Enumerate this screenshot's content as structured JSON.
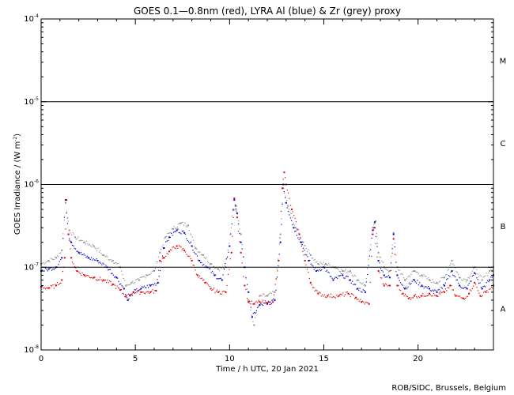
{
  "chart_data": {
    "type": "scatter",
    "title": "GOES 0.1—0.8nm (red), LYRA Al (blue) & Zr (grey) proxy",
    "xlabel": "Time / h UTC, 20 Jan 2021",
    "ylabel": "GOES Irradiance / (W m",
    "ylabel_exp": "-2",
    "ylabel_close": ")",
    "credit": "ROB/SIDC, Brussels, Belgium",
    "xlim": [
      0,
      24
    ],
    "ylim": [
      1e-08,
      0.0001
    ],
    "yscale": "log",
    "grid": false,
    "x_ticks": [
      {
        "value": 0,
        "label": "0"
      },
      {
        "value": 5,
        "label": "5"
      },
      {
        "value": 10,
        "label": "10"
      },
      {
        "value": 15,
        "label": "15"
      },
      {
        "value": 20,
        "label": "20"
      }
    ],
    "y_ticks": [
      {
        "value": 1e-08,
        "base": "10",
        "exp": "-8"
      },
      {
        "value": 1e-07,
        "base": "10",
        "exp": "-7"
      },
      {
        "value": 1e-06,
        "base": "10",
        "exp": "-6"
      },
      {
        "value": 1e-05,
        "base": "10",
        "exp": "-5"
      },
      {
        "value": 0.0001,
        "base": "10",
        "exp": "-4"
      }
    ],
    "flare_classes": [
      {
        "label": "A",
        "value": 3.16e-08
      },
      {
        "label": "B",
        "value": 3.16e-07
      },
      {
        "label": "C",
        "value": 3.16e-06
      },
      {
        "label": "M",
        "value": 3.16e-05
      }
    ],
    "threshold_lines": [
      1e-07,
      1e-06,
      1e-05
    ],
    "series": [
      {
        "key": "goes",
        "color": "#e00000",
        "points": [
          [
            0.0,
            5.8e-08
          ],
          [
            0.4,
            5.6e-08
          ],
          [
            0.8,
            6e-08
          ],
          [
            1.1,
            7e-08
          ],
          [
            1.25,
            1.3e-07
          ],
          [
            1.35,
            6.5e-07
          ],
          [
            1.45,
            2.5e-07
          ],
          [
            1.6,
            1.3e-07
          ],
          [
            1.9,
            9e-08
          ],
          [
            2.3,
            8e-08
          ],
          [
            2.8,
            7.5e-08
          ],
          [
            3.3,
            7e-08
          ],
          [
            3.8,
            6.2e-08
          ],
          [
            4.2,
            5.3e-08
          ],
          [
            4.5,
            4.4e-08
          ],
          [
            4.7,
            4.6e-08
          ],
          [
            4.9,
            5e-08
          ],
          [
            5.3,
            5e-08
          ],
          [
            5.8,
            5e-08
          ],
          [
            6.1,
            5.2e-08
          ],
          [
            6.3,
            1.2e-07
          ],
          [
            6.5,
            1.3e-07
          ],
          [
            6.8,
            1.55e-07
          ],
          [
            7.2,
            1.8e-07
          ],
          [
            7.6,
            1.6e-07
          ],
          [
            8.0,
            1.2e-07
          ],
          [
            8.3,
            8e-08
          ],
          [
            8.7,
            6.5e-08
          ],
          [
            9.0,
            5.5e-08
          ],
          [
            9.4,
            5e-08
          ],
          [
            9.8,
            5e-08
          ],
          [
            10.1,
            1.5e-07
          ],
          [
            10.25,
            6.8e-07
          ],
          [
            10.4,
            4e-07
          ],
          [
            10.6,
            1.5e-07
          ],
          [
            10.8,
            6e-08
          ],
          [
            11.0,
            3.8e-08
          ],
          [
            11.3,
            3.6e-08
          ],
          [
            11.6,
            3.8e-08
          ],
          [
            12.0,
            3.7e-08
          ],
          [
            12.3,
            3.8e-08
          ],
          [
            12.6,
            1.2e-07
          ],
          [
            12.8,
            9e-07
          ],
          [
            12.9,
            1.4e-06
          ],
          [
            13.0,
            1e-06
          ],
          [
            13.3,
            5e-07
          ],
          [
            13.7,
            2.5e-07
          ],
          [
            14.0,
            1.2e-07
          ],
          [
            14.3,
            6.5e-08
          ],
          [
            14.7,
            4.8e-08
          ],
          [
            15.2,
            4.5e-08
          ],
          [
            15.8,
            4.5e-08
          ],
          [
            16.3,
            4.8e-08
          ],
          [
            16.7,
            4.3e-08
          ],
          [
            17.0,
            3.8e-08
          ],
          [
            17.4,
            3.6e-08
          ],
          [
            17.6,
            2.5e-07
          ],
          [
            17.7,
            3e-07
          ],
          [
            17.9,
            9e-08
          ],
          [
            18.2,
            6e-08
          ],
          [
            18.5,
            6e-08
          ],
          [
            18.7,
            2.2e-07
          ],
          [
            18.9,
            6e-08
          ],
          [
            19.2,
            4.8e-08
          ],
          [
            19.5,
            4.2e-08
          ],
          [
            19.8,
            4.5e-08
          ],
          [
            20.2,
            4.5e-08
          ],
          [
            20.6,
            4.8e-08
          ],
          [
            21.0,
            4.5e-08
          ],
          [
            21.4,
            5e-08
          ],
          [
            21.7,
            6e-08
          ],
          [
            22.0,
            4.5e-08
          ],
          [
            22.4,
            4.2e-08
          ],
          [
            22.7,
            4.8e-08
          ],
          [
            23.0,
            6.5e-08
          ],
          [
            23.3,
            4.5e-08
          ],
          [
            23.6,
            5e-08
          ],
          [
            24.0,
            6e-08
          ]
        ]
      },
      {
        "key": "lyra_al",
        "color": "#0000cc",
        "points": [
          [
            0.0,
            9e-08
          ],
          [
            0.4,
            9.5e-08
          ],
          [
            0.8,
            1e-07
          ],
          [
            1.1,
            1.3e-07
          ],
          [
            1.3,
            6.5e-07
          ],
          [
            1.45,
            2.5e-07
          ],
          [
            1.6,
            2e-07
          ],
          [
            2.0,
            1.5e-07
          ],
          [
            2.5,
            1.3e-07
          ],
          [
            3.0,
            1.2e-07
          ],
          [
            3.5,
            1e-07
          ],
          [
            4.0,
            7.5e-08
          ],
          [
            4.4,
            5.5e-08
          ],
          [
            4.6,
            4e-08
          ],
          [
            4.9,
            5e-08
          ],
          [
            5.3,
            5.5e-08
          ],
          [
            5.8,
            6e-08
          ],
          [
            6.2,
            6.5e-08
          ],
          [
            6.5,
            1.7e-07
          ],
          [
            6.8,
            2.3e-07
          ],
          [
            7.2,
            2.8e-07
          ],
          [
            7.6,
            2.6e-07
          ],
          [
            8.0,
            1.8e-07
          ],
          [
            8.4,
            1.2e-07
          ],
          [
            8.8,
            1e-07
          ],
          [
            9.2,
            8e-08
          ],
          [
            9.6,
            7e-08
          ],
          [
            10.0,
            1.8e-07
          ],
          [
            10.25,
            6.5e-07
          ],
          [
            10.4,
            4.5e-07
          ],
          [
            10.6,
            2e-07
          ],
          [
            10.8,
            1e-07
          ],
          [
            11.0,
            5e-08
          ],
          [
            11.2,
            2.5e-08
          ],
          [
            11.6,
            3.5e-08
          ],
          [
            12.0,
            3.6e-08
          ],
          [
            12.4,
            4e-08
          ],
          [
            12.7,
            2e-07
          ],
          [
            12.85,
            1e-06
          ],
          [
            13.0,
            6e-07
          ],
          [
            13.4,
            3e-07
          ],
          [
            13.8,
            2e-07
          ],
          [
            14.2,
            1.2e-07
          ],
          [
            14.6,
            9e-08
          ],
          [
            15.0,
            1e-07
          ],
          [
            15.5,
            7e-08
          ],
          [
            16.0,
            8e-08
          ],
          [
            16.4,
            7e-08
          ],
          [
            16.8,
            5.5e-08
          ],
          [
            17.2,
            5e-08
          ],
          [
            17.6,
            2.8e-07
          ],
          [
            17.7,
            3.5e-07
          ],
          [
            17.9,
            1.2e-07
          ],
          [
            18.2,
            8e-08
          ],
          [
            18.5,
            7.5e-08
          ],
          [
            18.7,
            2.5e-07
          ],
          [
            18.9,
            8e-08
          ],
          [
            19.3,
            5.5e-08
          ],
          [
            19.8,
            7e-08
          ],
          [
            20.2,
            6e-08
          ],
          [
            20.6,
            5.5e-08
          ],
          [
            21.0,
            5e-08
          ],
          [
            21.4,
            6e-08
          ],
          [
            21.8,
            9e-08
          ],
          [
            22.2,
            6e-08
          ],
          [
            22.6,
            5.5e-08
          ],
          [
            23.0,
            8.5e-08
          ],
          [
            23.4,
            5.5e-08
          ],
          [
            23.8,
            7e-08
          ],
          [
            24.0,
            8e-08
          ]
        ]
      },
      {
        "key": "lyra_zr",
        "color": "#909090",
        "points": [
          [
            0.0,
            1.1e-07
          ],
          [
            0.4,
            1.2e-07
          ],
          [
            0.8,
            1.3e-07
          ],
          [
            1.1,
            1.6e-07
          ],
          [
            1.3,
            6e-07
          ],
          [
            1.5,
            2.8e-07
          ],
          [
            1.8,
            2.3e-07
          ],
          [
            2.3,
            2e-07
          ],
          [
            2.8,
            1.8e-07
          ],
          [
            3.3,
            1.4e-07
          ],
          [
            3.8,
            1.2e-07
          ],
          [
            4.2,
            1e-07
          ],
          [
            4.5,
            6e-08
          ],
          [
            4.8,
            6.5e-08
          ],
          [
            5.2,
            7e-08
          ],
          [
            5.6,
            8e-08
          ],
          [
            6.0,
            9e-08
          ],
          [
            6.3,
            1.5e-07
          ],
          [
            6.6,
            2.3e-07
          ],
          [
            7.0,
            2.9e-07
          ],
          [
            7.4,
            3.4e-07
          ],
          [
            7.8,
            3.2e-07
          ],
          [
            8.2,
            1.7e-07
          ],
          [
            8.6,
            1.4e-07
          ],
          [
            9.0,
            1.1e-07
          ],
          [
            9.4,
            9.5e-08
          ],
          [
            9.8,
            1e-07
          ],
          [
            10.2,
            5e-07
          ],
          [
            10.35,
            5.5e-07
          ],
          [
            10.6,
            2.5e-07
          ],
          [
            10.8,
            1e-07
          ],
          [
            11.0,
            4e-08
          ],
          [
            11.3,
            2e-08
          ],
          [
            11.6,
            4.5e-08
          ],
          [
            12.0,
            4.5e-08
          ],
          [
            12.4,
            5e-08
          ],
          [
            12.7,
            2.5e-07
          ],
          [
            12.85,
            9e-07
          ],
          [
            13.1,
            5.5e-07
          ],
          [
            13.5,
            3e-07
          ],
          [
            13.9,
            2e-07
          ],
          [
            14.3,
            1.4e-07
          ],
          [
            14.7,
            1.1e-07
          ],
          [
            15.1,
            1.1e-07
          ],
          [
            15.6,
            1e-07
          ],
          [
            16.0,
            9e-08
          ],
          [
            16.4,
            9e-08
          ],
          [
            16.8,
            7e-08
          ],
          [
            17.2,
            6e-08
          ],
          [
            17.6,
            3e-07
          ],
          [
            17.75,
            3.6e-07
          ],
          [
            17.9,
            1.5e-07
          ],
          [
            18.2,
            1e-07
          ],
          [
            18.5,
            9e-08
          ],
          [
            18.7,
            2.6e-07
          ],
          [
            18.9,
            1e-07
          ],
          [
            19.3,
            7e-08
          ],
          [
            19.8,
            9e-08
          ],
          [
            20.2,
            8e-08
          ],
          [
            20.6,
            7e-08
          ],
          [
            21.0,
            6.5e-08
          ],
          [
            21.4,
            7.5e-08
          ],
          [
            21.8,
            1.2e-07
          ],
          [
            22.2,
            7.5e-08
          ],
          [
            22.6,
            7e-08
          ],
          [
            23.0,
            1e-07
          ],
          [
            23.4,
            7e-08
          ],
          [
            23.8,
            9e-08
          ],
          [
            24.0,
            1e-07
          ]
        ]
      }
    ]
  }
}
